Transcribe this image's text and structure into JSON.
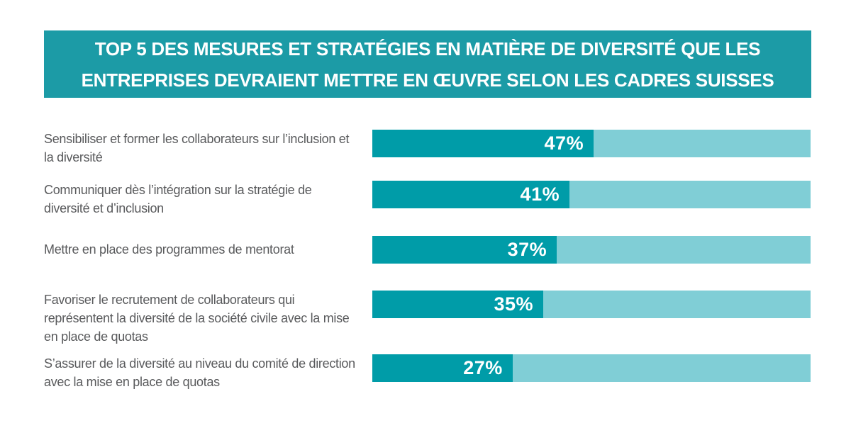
{
  "banner": {
    "lines": [
      "TOP 5 DES MESURES ET STRATÉGIES EN MATIÈRE DE DIVERSITÉ QUE LES",
      "ENTREPRISES DEVRAIENT METTRE EN ŒUVRE SELON LES CADRES SUISSES"
    ],
    "bg_color": "#1C9BA6",
    "text_color": "#FFFFFF"
  },
  "chart_data": {
    "type": "bar",
    "orientation": "horizontal",
    "title": "TOP 5 DES MESURES ET STRATÉGIES EN MATIÈRE DE DIVERSITÉ QUE LES ENTREPRISES DEVRAIENT METTRE EN ŒUVRE SELON LES CADRES SUISSES",
    "categories": [
      "Sensibiliser et former les collaborateurs sur l’inclusion et la diversité",
      "Communiquer dès l’intégration sur la stratégie de diversité et d’inclusion",
      "Mettre en place des programmes de mentorat",
      "Favoriser le recrutement de collaborateurs qui représentent la diversité de la société civile avec la mise en place de quotas",
      "S’assurer de la diversité au niveau du comité de direction avec la mise en place de quotas"
    ],
    "values": [
      47,
      41,
      37,
      35,
      27
    ],
    "value_labels": [
      "47%",
      "41%",
      "37%",
      "35%",
      "27%"
    ],
    "xlim": [
      0,
      100
    ],
    "grid": false,
    "legend": "none",
    "bar_fill_color": "#009CA8",
    "bar_track_color": "#80CED6",
    "category_label_color": "#595A5C",
    "fill_fractions_pct_of_track": [
      50.5,
      45.0,
      42.1,
      39.0,
      32.0
    ]
  }
}
